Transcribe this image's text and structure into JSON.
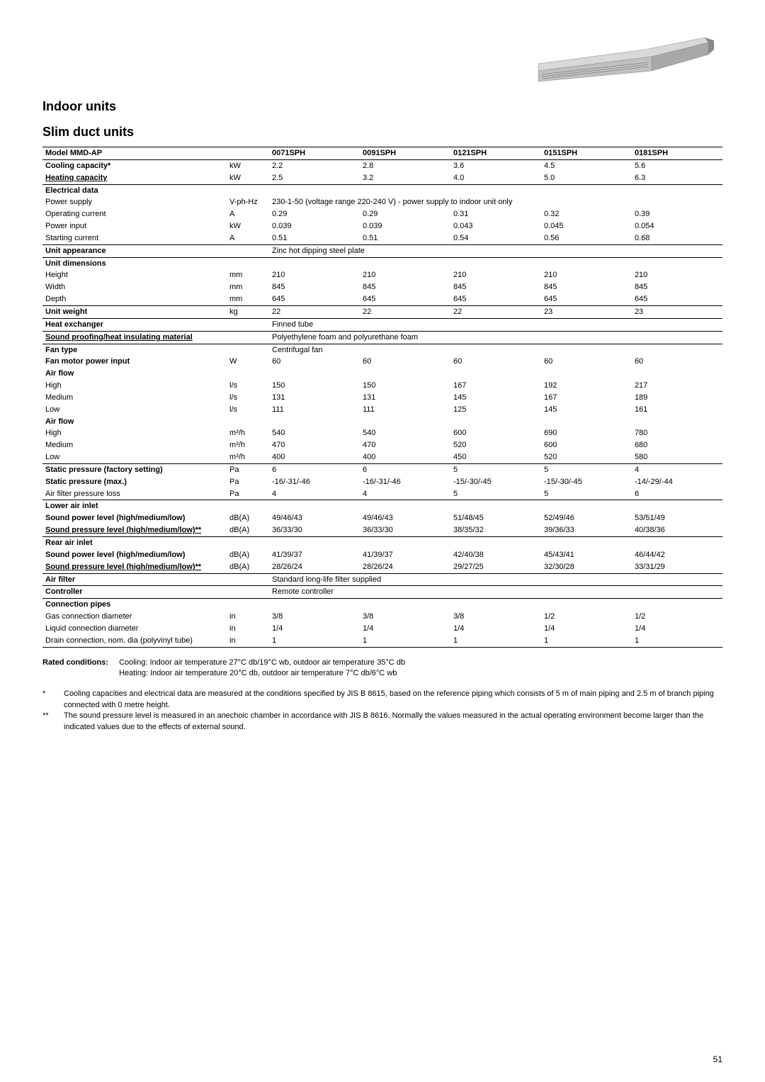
{
  "page_number": "51",
  "section_title": "Indoor units",
  "sub_title": "Slim duct units",
  "rated_conditions_label": "Rated conditions:",
  "rated_conditions_l1": "Cooling: Indoor air temperature 27°C db/19°C wb, outdoor air temperature 35°C db",
  "rated_conditions_l2": "Heating: Indoor air temperature 20°C db, outdoor air temperature 7°C db/6°C wb",
  "footnote1_mark": "*",
  "footnote1": "Cooling capacities and electrical data are measured at the conditions specified by JIS B 8615, based on the reference piping which consists of 5 m of main piping and 2.5 m of branch piping connected with 0 metre height.",
  "footnote2_mark": "**",
  "footnote2": "The sound pressure level is measured in an anechoic chamber in accordance with JIS B 8616. Normally the values measured in the actual operating environment become larger than the indicated values due to the effects of external sound.",
  "table": {
    "header": [
      "Model  MMD-AP",
      "",
      "0071SPH",
      "0091SPH",
      "0121SPH",
      "0151SPH",
      "0181SPH"
    ],
    "rows": [
      {
        "type": "data",
        "bold": true,
        "cells": [
          "Cooling capacity*",
          "kW",
          "2.2",
          "2.8",
          "3.6",
          "4.5",
          "5.6"
        ]
      },
      {
        "type": "data",
        "bold": true,
        "underline": true,
        "sep_after": false,
        "cells": [
          "Heating capacity",
          "kW",
          "2.5",
          "3.2",
          "4.0",
          "5.0",
          "6.3"
        ]
      },
      {
        "type": "sep",
        "bold": true,
        "cells": [
          "Electrical data",
          "",
          "",
          "",
          "",
          "",
          ""
        ]
      },
      {
        "type": "data",
        "cells": [
          "Power supply",
          "V-ph-Hz",
          "230-1-50 (voltage range 220-240 V) - power supply to indoor unit only",
          "",
          "",
          "",
          ""
        ],
        "span": 5
      },
      {
        "type": "data",
        "cells": [
          "Operating current",
          "A",
          "0.29",
          "0.29",
          "0.31",
          "0.32",
          "0.39"
        ]
      },
      {
        "type": "data",
        "cells": [
          "Power input",
          "kW",
          "0.039",
          "0.039",
          "0.043",
          "0.045",
          "0.054"
        ]
      },
      {
        "type": "data",
        "cells": [
          "Starting current",
          "A",
          "0.51",
          "0.51",
          "0.54",
          "0.56",
          "0.68"
        ]
      },
      {
        "type": "sep",
        "bold": true,
        "cells": [
          "Unit appearance",
          "",
          "Zinc hot dipping steel plate",
          "",
          "",
          "",
          ""
        ],
        "span": 5
      },
      {
        "type": "sep",
        "bold": true,
        "cells": [
          "Unit dimensions",
          "",
          "",
          "",
          "",
          "",
          ""
        ]
      },
      {
        "type": "data",
        "cells": [
          "Height",
          "mm",
          "210",
          "210",
          "210",
          "210",
          "210"
        ]
      },
      {
        "type": "data",
        "cells": [
          "Width",
          "mm",
          "845",
          "845",
          "845",
          "845",
          "845"
        ]
      },
      {
        "type": "data",
        "cells": [
          "Depth",
          "mm",
          "645",
          "645",
          "645",
          "645",
          "645"
        ]
      },
      {
        "type": "sep",
        "bold": true,
        "cells": [
          "Unit weight",
          "kg",
          "22",
          "22",
          "22",
          "23",
          "23"
        ]
      },
      {
        "type": "sep",
        "bold": true,
        "cells": [
          "Heat exchanger",
          "",
          "Finned tube",
          "",
          "",
          "",
          ""
        ],
        "span": 5
      },
      {
        "type": "sep",
        "bold": true,
        "underline": true,
        "cells": [
          "Sound proofing/heat insulating material",
          "",
          "Polyethylene foam and polyurethane foam",
          "",
          "",
          "",
          ""
        ],
        "span": 5
      },
      {
        "type": "sep",
        "bold": true,
        "cells": [
          "Fan type",
          "",
          "Centrifugal fan",
          "",
          "",
          "",
          ""
        ],
        "span": 5
      },
      {
        "type": "data",
        "bold": true,
        "cells": [
          "Fan motor power input",
          "W",
          "60",
          "60",
          "60",
          "60",
          "60"
        ]
      },
      {
        "type": "data",
        "bold": true,
        "cells": [
          "Air flow",
          "",
          "",
          "",
          "",
          "",
          ""
        ]
      },
      {
        "type": "data",
        "cells": [
          "High",
          "l/s",
          "150",
          "150",
          "167",
          "192",
          "217"
        ]
      },
      {
        "type": "data",
        "cells": [
          "Medium",
          "l/s",
          "131",
          "131",
          "145",
          "167",
          "189"
        ]
      },
      {
        "type": "data",
        "cells": [
          "Low",
          "l/s",
          "111",
          "111",
          "125",
          "145",
          "161"
        ]
      },
      {
        "type": "data",
        "bold": true,
        "cells": [
          "Air flow",
          "",
          "",
          "",
          "",
          "",
          ""
        ]
      },
      {
        "type": "data",
        "cells": [
          "High",
          "m³/h",
          "540",
          "540",
          "600",
          "690",
          "780"
        ]
      },
      {
        "type": "data",
        "cells": [
          "Medium",
          "m³/h",
          "470",
          "470",
          "520",
          "600",
          "680"
        ]
      },
      {
        "type": "data",
        "cells": [
          "Low",
          "m³/h",
          "400",
          "400",
          "450",
          "520",
          "580"
        ]
      },
      {
        "type": "sep",
        "bold": true,
        "cells": [
          "Static pressure (factory setting)",
          "Pa",
          "6",
          "6",
          "5",
          "5",
          "4"
        ]
      },
      {
        "type": "data",
        "bold": true,
        "cells": [
          "Static pressure (max.)",
          "Pa",
          "-16/-31/-46",
          "-16/-31/-46",
          "-15/-30/-45",
          "-15/-30/-45",
          "-14/-29/-44"
        ]
      },
      {
        "type": "data",
        "cells": [
          "Air filter pressure loss",
          "Pa",
          "4",
          "4",
          "5",
          "5",
          "6"
        ]
      },
      {
        "type": "sep",
        "bold": true,
        "cells": [
          "Lower air inlet",
          "",
          "",
          "",
          "",
          "",
          ""
        ]
      },
      {
        "type": "data",
        "bold": true,
        "cells": [
          "Sound power level (high/medium/low)",
          "dB(A)",
          "49/46/43",
          "49/46/43",
          "51/48/45",
          "52/49/46",
          "53/51/49"
        ]
      },
      {
        "type": "data",
        "bold": true,
        "underline": true,
        "cells": [
          "Sound pressure level (high/medium/low)**",
          "dB(A)",
          "36/33/30",
          "36/33/30",
          "38/35/32",
          "39/36/33",
          "40/38/36"
        ]
      },
      {
        "type": "sep",
        "bold": true,
        "cells": [
          "Rear air inlet",
          "",
          "",
          "",
          "",
          "",
          ""
        ]
      },
      {
        "type": "data",
        "bold": true,
        "cells": [
          "Sound power level (high/medium/low)",
          "dB(A)",
          "41/39/37",
          "41/39/37",
          "42/40/38",
          "45/43/41",
          "46/44/42"
        ]
      },
      {
        "type": "data",
        "bold": true,
        "underline": true,
        "cells": [
          "Sound pressure level (high/medium/low)**",
          "dB(A)",
          "28/26/24",
          "28/26/24",
          "29/27/25",
          "32/30/28",
          "33/31/29"
        ]
      },
      {
        "type": "sep",
        "bold": true,
        "cells": [
          "Air filter",
          "",
          "Standard long-life filter supplied",
          "",
          "",
          "",
          ""
        ],
        "span": 5
      },
      {
        "type": "sep",
        "bold": true,
        "cells": [
          "Controller",
          "",
          "Remote controller",
          "",
          "",
          "",
          ""
        ],
        "span": 5
      },
      {
        "type": "sep",
        "bold": true,
        "cells": [
          "Connection pipes",
          "",
          "",
          "",
          "",
          "",
          ""
        ]
      },
      {
        "type": "data",
        "cells": [
          "Gas connection diameter",
          "in",
          "3/8",
          "3/8",
          "3/8",
          "1/2",
          "1/2"
        ]
      },
      {
        "type": "data",
        "cells": [
          "Liquid connection diameter",
          "in",
          "1/4",
          "1/4",
          "1/4",
          "1/4",
          "1/4"
        ]
      },
      {
        "type": "data",
        "sep_after": true,
        "cells": [
          "Drain connection, nom. dia (polyvinyl tube)",
          "in",
          "1",
          "1",
          "1",
          "1",
          "1"
        ]
      }
    ]
  }
}
